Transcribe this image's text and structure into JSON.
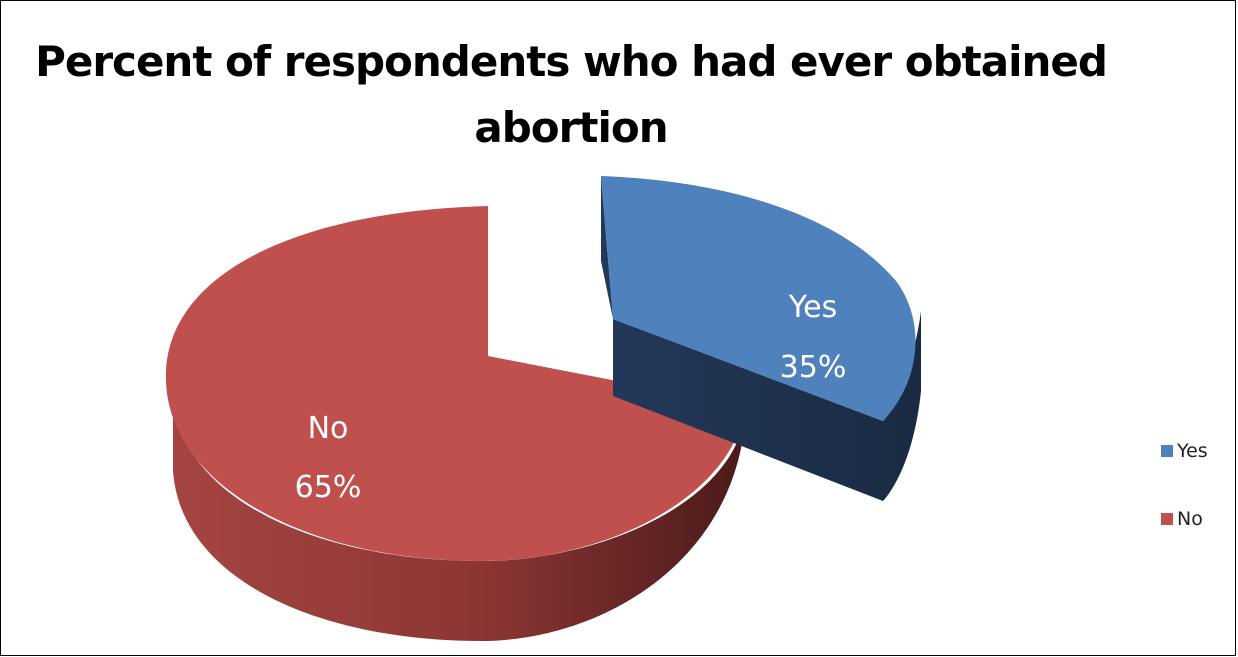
{
  "chart_data": {
    "type": "pie",
    "title": "Percent of respondents who had ever obtained abortion",
    "categories": [
      "Yes",
      "No"
    ],
    "values": [
      35,
      65
    ],
    "unit": "%",
    "data_labels": [
      {
        "name": "Yes",
        "value": "35%"
      },
      {
        "name": "No",
        "value": "65%"
      }
    ],
    "colors": {
      "Yes": "#4f81bd",
      "No": "#c0504d"
    },
    "side_colors": {
      "Yes": "#1f3552",
      "No": "#7a2e2c"
    },
    "exploded": "Yes",
    "legend": {
      "position": "right",
      "items": [
        "Yes",
        "No"
      ]
    }
  }
}
